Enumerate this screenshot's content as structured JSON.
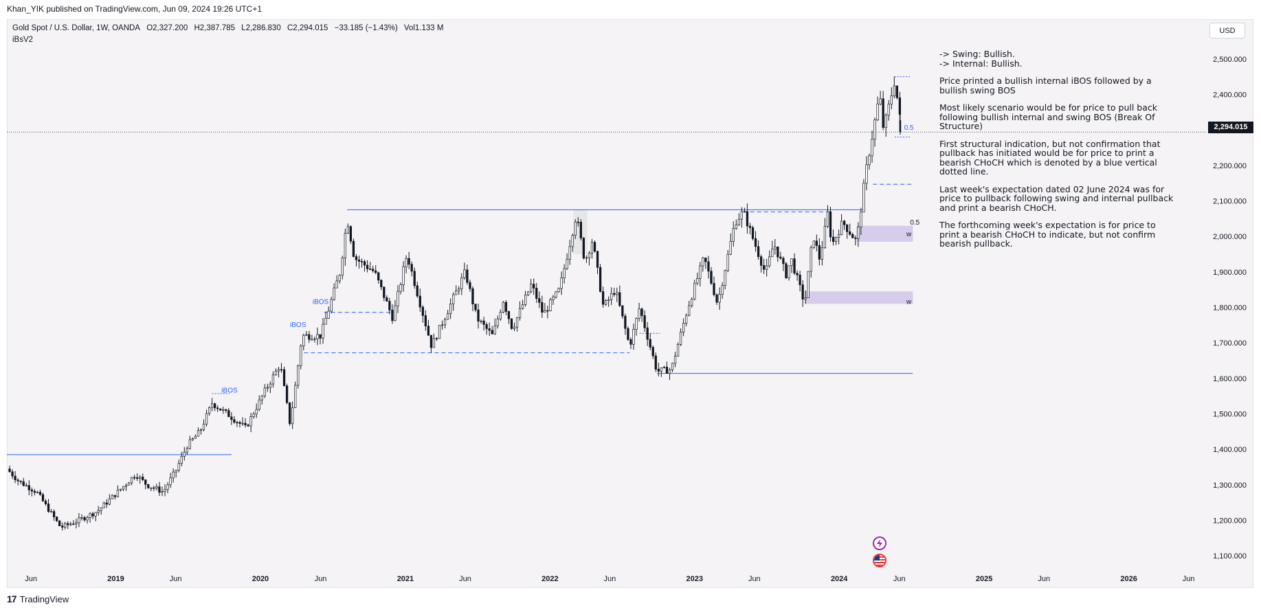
{
  "header": {
    "published": "Khan_YIK published on TradingView.com, Jun 09, 2024 19:26 UTC+1"
  },
  "legend": {
    "symbol": "Gold Spot / U.S. Dollar, 1W, OANDA",
    "open": "O2,327.200",
    "high": "H2,387.785",
    "low": "L2,286.830",
    "close": "C2,294.015",
    "change": "−33.185 (−1.43%)",
    "volume": "Vol1.133 M",
    "indicator": "iBsV2"
  },
  "currency_button": "USD",
  "last_price_label": "2,294.015",
  "footer": {
    "brand": "TradingView"
  },
  "notes": {
    "swing": "-> Swing: Bullish.",
    "internal": "-> Internal: Bullish.",
    "p1": "Price  printed a bullish internal iBOS followed by a bullish swing BOS",
    "p2": "Most likely scenario would be for price to pull back following bullish internal and swing BOS (Break Of Structure)",
    "p3": "First structural indication, but not confirmation that pullback has initiated would be for price to print a bearish CHoCH which is denoted by a blue vertical dotted line.",
    "p4": "Last week's expectation dated 02 June 2024 was for price to pullback following swing and internal pullback and print a bearish CHoCH.",
    "p5": "The forthcoming week's expectation is for price to print a bearish CHoCH to indicate, but not confirm bearish pullback."
  },
  "colors": {
    "up": "#131722",
    "down": "#131722",
    "structure_line": "#2962ff",
    "zone_fill": "#d1c4e9",
    "background": "#f5f3f5"
  },
  "icons": [
    "tradingview-logo",
    "lightning-icon",
    "us-flag-icon"
  ],
  "chart_data": {
    "type": "candlestick",
    "symbol": "Gold Spot / U.S. Dollar",
    "interval": "1W",
    "ylim": [
      1050,
      2550
    ],
    "y_ticks": [
      "2,500.000",
      "2,400.000",
      "2,300.000",
      "2,200.000",
      "2,100.000",
      "2,000.000",
      "1,900.000",
      "1,800.000",
      "1,700.000",
      "1,600.000",
      "1,500.000",
      "1,400.000",
      "1,300.000",
      "1,200.000",
      "1,100.000"
    ],
    "y_tick_values": [
      2500,
      2400,
      2300,
      2200,
      2100,
      2000,
      1900,
      1800,
      1700,
      1600,
      1500,
      1400,
      1300,
      1200,
      1100
    ],
    "x_ticks": [
      "Jun",
      "2019",
      "Jun",
      "2020",
      "Jun",
      "2021",
      "Jun",
      "2022",
      "Jun",
      "2023",
      "Jun",
      "2024",
      "Jun",
      "2025",
      "Jun",
      "2026",
      "Jun"
    ],
    "x_tick_dates": [
      "2018-06-01",
      "2019-01-01",
      "2019-06-01",
      "2020-01-01",
      "2020-06-01",
      "2021-01-01",
      "2021-06-01",
      "2022-01-01",
      "2022-06-01",
      "2023-01-01",
      "2023-06-01",
      "2024-01-01",
      "2024-06-01",
      "2025-01-01",
      "2025-06-01",
      "2026-01-01",
      "2026-06-01"
    ],
    "x_range": [
      "2018-04-01",
      "2026-07-15"
    ],
    "path_points": [
      [
        "2018-04-01",
        1345
      ],
      [
        "2018-05-01",
        1310
      ],
      [
        "2018-06-15",
        1280
      ],
      [
        "2018-08-15",
        1180
      ],
      [
        "2018-09-20",
        1195
      ],
      [
        "2018-11-15",
        1225
      ],
      [
        "2019-01-15",
        1290
      ],
      [
        "2019-02-20",
        1330
      ],
      [
        "2019-03-20",
        1300
      ],
      [
        "2019-05-01",
        1280
      ],
      [
        "2019-06-01",
        1340
      ],
      [
        "2019-06-30",
        1410
      ],
      [
        "2019-08-01",
        1450
      ],
      [
        "2019-09-01",
        1530
      ],
      [
        "2019-10-15",
        1495
      ],
      [
        "2019-11-25",
        1460
      ],
      [
        "2020-01-10",
        1560
      ],
      [
        "2020-02-20",
        1640
      ],
      [
        "2020-03-16",
        1470
      ],
      [
        "2020-04-15",
        1720
      ],
      [
        "2020-06-01",
        1720
      ],
      [
        "2020-07-20",
        1900
      ],
      [
        "2020-08-07",
        2050
      ],
      [
        "2020-08-25",
        1940
      ],
      [
        "2020-10-15",
        1900
      ],
      [
        "2020-11-30",
        1770
      ],
      [
        "2021-01-05",
        1950
      ],
      [
        "2021-03-08",
        1690
      ],
      [
        "2021-06-01",
        1900
      ],
      [
        "2021-06-30",
        1770
      ],
      [
        "2021-08-09",
        1720
      ],
      [
        "2021-09-05",
        1820
      ],
      [
        "2021-09-28",
        1740
      ],
      [
        "2021-11-15",
        1865
      ],
      [
        "2021-12-15",
        1780
      ],
      [
        "2022-01-25",
        1850
      ],
      [
        "2022-03-08",
        2060
      ],
      [
        "2022-03-30",
        1930
      ],
      [
        "2022-04-18",
        1990
      ],
      [
        "2022-05-16",
        1800
      ],
      [
        "2022-06-15",
        1850
      ],
      [
        "2022-07-21",
        1690
      ],
      [
        "2022-08-15",
        1800
      ],
      [
        "2022-09-28",
        1620
      ],
      [
        "2022-11-03",
        1625
      ],
      [
        "2022-12-15",
        1800
      ],
      [
        "2023-01-25",
        1940
      ],
      [
        "2023-02-28",
        1810
      ],
      [
        "2023-04-13",
        2040
      ],
      [
        "2023-05-04",
        2070
      ],
      [
        "2023-06-29",
        1895
      ],
      [
        "2023-07-20",
        1980
      ],
      [
        "2023-08-21",
        1890
      ],
      [
        "2023-09-01",
        1940
      ],
      [
        "2023-10-06",
        1810
      ],
      [
        "2023-10-27",
        2005
      ],
      [
        "2023-11-13",
        1935
      ],
      [
        "2023-12-04",
        2070
      ],
      [
        "2023-12-13",
        1975
      ],
      [
        "2024-01-10",
        2040
      ],
      [
        "2024-02-14",
        1985
      ],
      [
        "2024-03-08",
        2180
      ],
      [
        "2024-04-12",
        2400
      ],
      [
        "2024-04-22",
        2300
      ],
      [
        "2024-05-20",
        2440
      ],
      [
        "2024-06-07",
        2294
      ]
    ],
    "last_bar": {
      "date": "2024-06-03",
      "open": 2327.2,
      "high": 2387.785,
      "low": 2286.83,
      "close": 2294.015
    },
    "last_price": 2294.015,
    "annotations": [
      {
        "text": "iBOS",
        "date": "2019-10-15",
        "price": 1560
      },
      {
        "text": "iBOS",
        "date": "2020-04-05",
        "price": 1745
      },
      {
        "text": "iBOS",
        "date": "2020-06-01",
        "price": 1810
      },
      {
        "text": "0.5",
        "date": "2024-06-25",
        "price": 2300
      },
      {
        "text": "0.5",
        "date": "2024-07-10",
        "price": 2033
      },
      {
        "text": "w",
        "date": "2024-06-25",
        "price": 2000
      },
      {
        "text": "w",
        "date": "2024-06-25",
        "price": 1810
      }
    ],
    "structure_lines": [
      {
        "style": "solid",
        "y": 1385,
        "x1": "2018-04-01",
        "x2": "2019-10-20"
      },
      {
        "style": "solid",
        "y": 2075,
        "x1": "2020-08-07",
        "x2": "2024-03-05"
      },
      {
        "style": "solid",
        "y": 1614,
        "x1": "2022-09-28",
        "x2": "2024-07-05"
      },
      {
        "style": "dashed",
        "y": 1672,
        "x1": "2020-04-20",
        "x2": "2022-07-21"
      },
      {
        "style": "dashed",
        "y": 1786,
        "x1": "2020-06-10",
        "x2": "2020-11-25"
      },
      {
        "style": "dashed",
        "y": 2069,
        "x1": "2023-05-04",
        "x2": "2023-12-10"
      },
      {
        "style": "dashed",
        "y": 2147,
        "x1": "2024-03-26",
        "x2": "2024-07-05"
      },
      {
        "style": "dotted",
        "y": 2450,
        "x1": "2024-05-20",
        "x2": "2024-06-30"
      },
      {
        "style": "dotted",
        "y": 2280,
        "x1": "2024-05-20",
        "x2": "2024-06-30"
      },
      {
        "style": "dotted",
        "y": 1727,
        "x1": "2022-08-15",
        "x2": "2022-10-05"
      },
      {
        "style": "dotted",
        "y": 1557,
        "x1": "2019-09-01",
        "x2": "2019-10-15"
      }
    ],
    "zones": [
      {
        "label": "w",
        "y1": 1985,
        "y2": 2030,
        "x1": "2024-02-14",
        "x2": "2024-07-05"
      },
      {
        "label": "w",
        "y1": 1810,
        "y2": 1845,
        "x1": "2023-10-06",
        "x2": "2024-07-05"
      }
    ],
    "highlight_band": {
      "x1": "2022-03-01",
      "x2": "2022-04-05",
      "y1": 1950,
      "y2": 2075
    },
    "ylabel": "",
    "xlabel": ""
  }
}
